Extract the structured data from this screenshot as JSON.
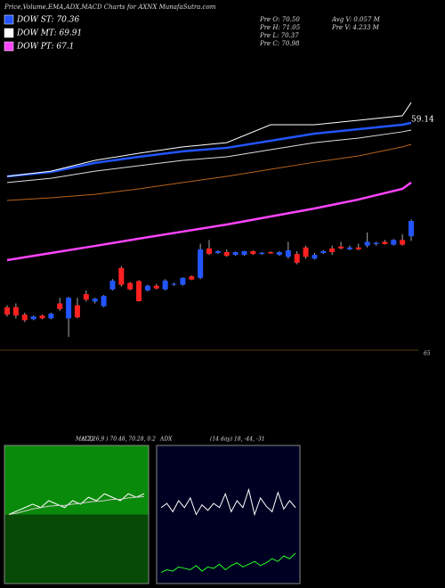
{
  "header": {
    "title": "Price,Volume,EMA,ADX,MACD Charts for AXNX MunafaSutra.com",
    "legend": [
      {
        "label": "DOW ST: 70.36",
        "color": "#2255ff"
      },
      {
        "label": "DOW MT: 69.91",
        "color": "#ffffff"
      },
      {
        "label": "DOW PT: 67.1",
        "color": "#ff44ff"
      }
    ],
    "info": [
      "Pre  O: 70.50",
      "Pre  H: 71.05",
      "Pre  L: 70.37",
      "Pre  C: 70.98"
    ],
    "volume": [
      "Avg V: 0.057 M",
      "Pre  V: 4.233 M"
    ]
  },
  "chart_data": [
    {
      "type": "candlestick",
      "ylim": [
        64,
        80
      ],
      "last_label": "59.14",
      "base_label": "65",
      "up_color": "#2255ff",
      "down_color": "#ff2020",
      "candles": [
        {
          "open": 66.39,
          "high": 66.5,
          "low": 65.9,
          "close": 66.0
        },
        {
          "open": 66.4,
          "high": 66.6,
          "low": 65.8,
          "close": 65.95
        },
        {
          "open": 66.0,
          "high": 66.1,
          "low": 65.6,
          "close": 65.7
        },
        {
          "open": 65.75,
          "high": 65.95,
          "low": 65.7,
          "close": 65.9
        },
        {
          "open": 65.95,
          "high": 66.0,
          "low": 65.75,
          "close": 65.8
        },
        {
          "open": 65.8,
          "high": 66.1,
          "low": 65.75,
          "close": 66.05
        },
        {
          "open": 66.6,
          "high": 66.9,
          "low": 66.2,
          "close": 66.3
        },
        {
          "open": 65.8,
          "high": 66.95,
          "low": 64.8,
          "close": 66.9
        },
        {
          "open": 66.5,
          "high": 66.9,
          "low": 65.8,
          "close": 65.85
        },
        {
          "open": 67.1,
          "high": 67.3,
          "low": 66.7,
          "close": 66.8
        },
        {
          "open": 66.7,
          "high": 66.9,
          "low": 66.6,
          "close": 66.85
        },
        {
          "open": 66.45,
          "high": 67.05,
          "low": 66.4,
          "close": 67.0
        },
        {
          "open": 67.35,
          "high": 67.9,
          "low": 67.3,
          "close": 67.82
        },
        {
          "open": 68.5,
          "high": 68.6,
          "low": 67.5,
          "close": 67.6
        },
        {
          "open": 67.7,
          "high": 67.75,
          "low": 67.3,
          "close": 67.35
        },
        {
          "open": 67.8,
          "high": 67.85,
          "low": 66.7,
          "close": 66.72
        },
        {
          "open": 67.3,
          "high": 67.6,
          "low": 67.25,
          "close": 67.55
        },
        {
          "open": 67.55,
          "high": 67.65,
          "low": 67.35,
          "close": 67.4
        },
        {
          "open": 67.35,
          "high": 67.9,
          "low": 67.3,
          "close": 67.82
        },
        {
          "open": 67.6,
          "high": 67.7,
          "low": 67.55,
          "close": 67.65
        },
        {
          "open": 67.6,
          "high": 68.0,
          "low": 67.55,
          "close": 67.97
        },
        {
          "open": 68.05,
          "high": 68.1,
          "low": 67.85,
          "close": 67.88
        },
        {
          "open": 67.97,
          "high": 69.8,
          "low": 67.9,
          "close": 69.5
        },
        {
          "open": 69.55,
          "high": 70.0,
          "low": 69.2,
          "close": 69.25
        },
        {
          "open": 69.3,
          "high": 69.45,
          "low": 69.25,
          "close": 69.4
        },
        {
          "open": 69.35,
          "high": 69.5,
          "low": 69.1,
          "close": 69.15
        },
        {
          "open": 69.2,
          "high": 69.38,
          "low": 69.15,
          "close": 69.35
        },
        {
          "open": 69.2,
          "high": 69.42,
          "low": 69.15,
          "close": 69.4
        },
        {
          "open": 69.4,
          "high": 69.45,
          "low": 69.2,
          "close": 69.25
        },
        {
          "open": 69.25,
          "high": 69.35,
          "low": 69.2,
          "close": 69.32
        },
        {
          "open": 69.35,
          "high": 69.4,
          "low": 69.25,
          "close": 69.28
        },
        {
          "open": 69.2,
          "high": 69.4,
          "low": 69.15,
          "close": 69.35
        },
        {
          "open": 69.1,
          "high": 69.9,
          "low": 69.0,
          "close": 69.45
        },
        {
          "open": 69.25,
          "high": 69.4,
          "low": 68.7,
          "close": 68.78
        },
        {
          "open": 69.6,
          "high": 69.7,
          "low": 69.0,
          "close": 69.1
        },
        {
          "open": 69.0,
          "high": 69.3,
          "low": 68.95,
          "close": 69.2
        },
        {
          "open": 69.3,
          "high": 69.45,
          "low": 69.25,
          "close": 69.4
        },
        {
          "open": 69.55,
          "high": 69.7,
          "low": 69.2,
          "close": 69.35
        },
        {
          "open": 69.65,
          "high": 69.9,
          "low": 69.5,
          "close": 69.55
        },
        {
          "open": 69.5,
          "high": 69.7,
          "low": 69.45,
          "close": 69.6
        },
        {
          "open": 69.6,
          "high": 69.8,
          "low": 69.45,
          "close": 69.5
        },
        {
          "open": 69.7,
          "high": 70.4,
          "low": 69.6,
          "close": 69.9
        },
        {
          "open": 69.78,
          "high": 69.9,
          "low": 69.7,
          "close": 69.85
        },
        {
          "open": 69.9,
          "high": 70.0,
          "low": 69.75,
          "close": 69.78
        },
        {
          "open": 69.75,
          "high": 70.05,
          "low": 69.7,
          "close": 70.0
        },
        {
          "open": 70.0,
          "high": 70.3,
          "low": 69.7,
          "close": 69.75
        },
        {
          "open": 70.2,
          "high": 71.1,
          "low": 69.95,
          "close": 71.02
        }
      ],
      "x": [
        0,
        5,
        10,
        15,
        20,
        25,
        30,
        35,
        40,
        45,
        46
      ],
      "series": [
        {
          "color": "#ff44ff",
          "width": 2.5,
          "values": [
            68.92,
            69.3,
            69.68,
            70.07,
            70.45,
            70.83,
            71.26,
            71.69,
            72.17,
            72.74,
            73.08
          ]
        },
        {
          "color": "#b8621b",
          "width": 1,
          "values": [
            72.12,
            72.26,
            72.45,
            72.74,
            73.08,
            73.41,
            73.79,
            74.17,
            74.51,
            74.99,
            75.13
          ]
        },
        {
          "color": "#dddddd",
          "width": 1,
          "values": [
            73.08,
            73.31,
            73.69,
            73.98,
            74.27,
            74.46,
            74.84,
            75.22,
            75.46,
            75.8,
            75.89
          ]
        },
        {
          "color": "#2255ff",
          "width": 2.5,
          "values": [
            73.41,
            73.65,
            74.13,
            74.46,
            74.75,
            74.94,
            75.32,
            75.7,
            75.94,
            76.18,
            76.28
          ]
        },
        {
          "color": "#ffffff",
          "width": 1,
          "values": [
            73.41,
            73.69,
            74.27,
            74.65,
            74.99,
            75.22,
            76.18,
            76.18,
            76.42,
            76.66,
            77.37
          ]
        }
      ]
    },
    {
      "type": "line",
      "title": "MACD:",
      "subtitle": "(12,26,9 ) 70.48, 70.28, 0.2",
      "ylim": [
        -1,
        1
      ],
      "background": "#0a8a0a",
      "series": [
        {
          "color": "#ffffff",
          "values": [
            0.0,
            0.05,
            0.1,
            0.15,
            0.1,
            0.2,
            0.15,
            0.1,
            0.2,
            0.15,
            0.25,
            0.2,
            0.3,
            0.25,
            0.2,
            0.3,
            0.25,
            0.3
          ]
        },
        {
          "color": "#cccccc",
          "values": [
            0.0,
            0.02,
            0.05,
            0.08,
            0.1,
            0.12,
            0.13,
            0.13,
            0.15,
            0.16,
            0.18,
            0.19,
            0.2,
            0.22,
            0.22,
            0.24,
            0.25,
            0.26
          ]
        }
      ]
    },
    {
      "type": "line",
      "title": "ADX",
      "subtitle": "(14 day) 18, -44, -31",
      "ylim": [
        0,
        100
      ],
      "background": "#000022",
      "series": [
        {
          "color": "#ffffff",
          "values": [
            55,
            58,
            52,
            60,
            55,
            62,
            50,
            57,
            53,
            58,
            55,
            65,
            52,
            60,
            55,
            68,
            50,
            62,
            56,
            52,
            66,
            54,
            60,
            55
          ]
        },
        {
          "color": "#22ff22",
          "values": [
            8,
            10,
            9,
            12,
            11,
            10,
            13,
            9,
            12,
            11,
            14,
            10,
            13,
            15,
            12,
            14,
            16,
            13,
            15,
            18,
            16,
            20,
            18,
            22
          ]
        }
      ]
    }
  ]
}
